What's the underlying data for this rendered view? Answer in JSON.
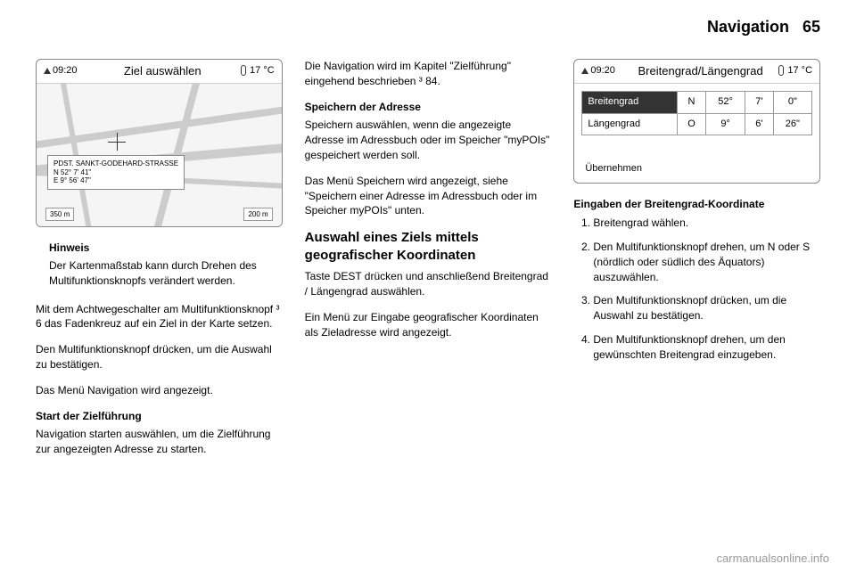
{
  "header": {
    "title": "Navigation",
    "page": "65"
  },
  "col1": {
    "screen": {
      "time": "09:20",
      "title": "Ziel auswählen",
      "temp": "17 °C",
      "popup_street": "PDST. SANKT-GODEHARD-STRASSE",
      "popup_lat": "N 52° 7' 41\"",
      "popup_lon": "E 9° 56' 47\"",
      "scale_left": "350 m",
      "scale_right": "200 m"
    },
    "hinweis_label": "Hinweis",
    "hinweis_text": "Der Kartenmaßstab kann durch Drehen des Multifunktionsknopfs verändert werden.",
    "para1": "Mit dem Achtwegeschalter am Multifunktionsknopf ³ 6 das Fadenkreuz auf ein Ziel in der Karte setzen.",
    "para2": "Den Multifunktionsknopf drücken, um die Auswahl zu bestätigen.",
    "para3": "Das Menü Navigation wird angezeigt.",
    "sub1": "Start der Zielführung",
    "sub1_text": "Navigation starten auswählen, um die Zielführung zur angezeigten Adresse zu starten."
  },
  "col2": {
    "intro": "Die Navigation wird im Kapitel \"Zielführung\" eingehend beschrieben ³ 84.",
    "sub1": "Speichern der Adresse",
    "sub1_text": "Speichern auswählen, wenn die angezeigte Adresse im Adressbuch oder im Speicher \"myPOIs\" gespeichert werden soll.",
    "para2": "Das Menü Speichern wird angezeigt, siehe \"Speichern einer Adresse im Adressbuch oder im Speicher myPOIs\" unten.",
    "bigsub": "Auswahl eines Ziels mittels geografischer Koordinaten",
    "bigsub_text": "Taste DEST drücken und anschließend Breitengrad / Längengrad auswählen.",
    "para3": "Ein Menü zur Eingabe geografischer Koordinaten als Zieladresse wird angezeigt."
  },
  "col3": {
    "screen": {
      "time": "09:20",
      "title": "Breitengrad/Längengrad",
      "temp": "17 °C",
      "row1": {
        "label": "Breitengrad",
        "dir": "N",
        "deg": "52°",
        "min": "7'",
        "sec": "0\""
      },
      "row2": {
        "label": "Längengrad",
        "dir": "O",
        "deg": "9°",
        "min": "6'",
        "sec": "26\""
      },
      "uebernehmen": "Übernehmen"
    },
    "sub1": "Eingaben der Breitengrad-Koordinate",
    "steps": {
      "s1": "Breitengrad wählen.",
      "s2": "Den Multifunktionsknopf drehen, um N oder S (nördlich oder südlich des Äquators) auszuwählen.",
      "s3": "Den Multifunktionsknopf drücken, um die Auswahl zu bestätigen.",
      "s4": "Den Multifunktionsknopf drehen, um den gewünschten Breitengrad einzugeben."
    }
  },
  "watermark": "carmanualsonline.info"
}
